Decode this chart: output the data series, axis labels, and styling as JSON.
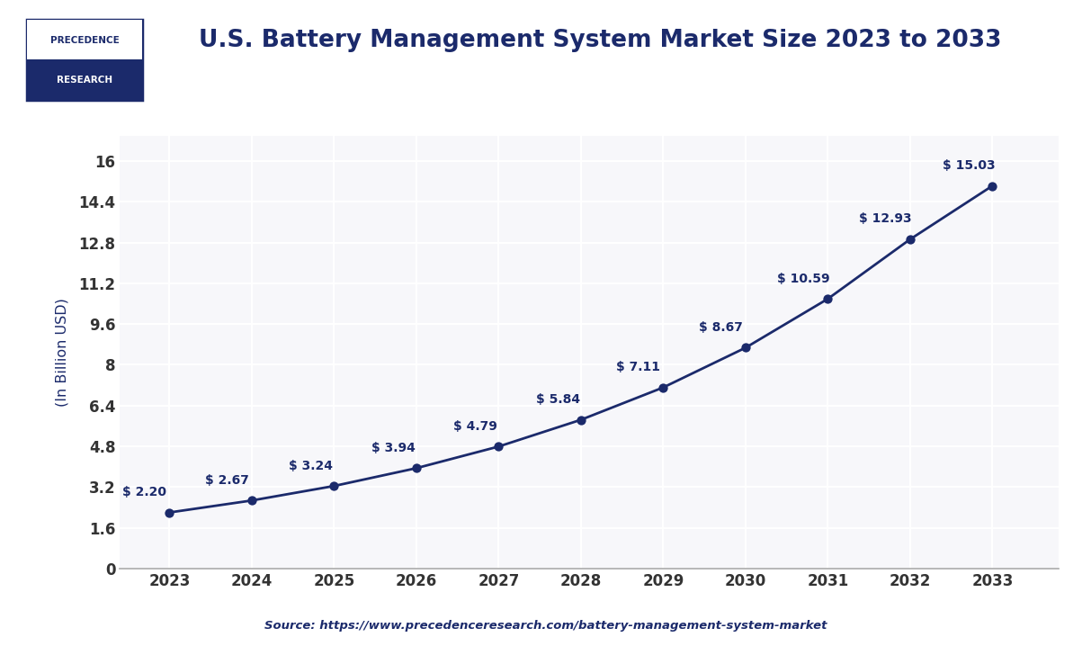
{
  "title": "U.S. Battery Management System Market Size 2023 to 2033",
  "ylabel": "(In Billion USD)",
  "source_text": "Source: https://www.precedenceresearch.com/battery-management-system-market",
  "years": [
    2023,
    2024,
    2025,
    2026,
    2027,
    2028,
    2029,
    2030,
    2031,
    2032,
    2033
  ],
  "values": [
    2.2,
    2.67,
    3.24,
    3.94,
    4.79,
    5.84,
    7.11,
    8.67,
    10.59,
    12.93,
    15.03
  ],
  "labels": [
    "$ 2.20",
    "$ 2.67",
    "$ 3.24",
    "$ 3.94",
    "$ 4.79",
    "$ 5.84",
    "$ 7.11",
    "$ 8.67",
    "$ 10.59",
    "$ 12.93",
    "$ 15.03"
  ],
  "line_color": "#1b2a6b",
  "marker_color": "#1b2a6b",
  "bg_color": "#ffffff",
  "plot_bg_color": "#f7f7fa",
  "grid_color": "#ffffff",
  "title_color": "#1b2a6b",
  "label_color": "#1b2a6b",
  "tick_color": "#333333",
  "yticks": [
    0,
    1.6,
    3.2,
    4.8,
    6.4,
    8.0,
    9.6,
    11.2,
    12.8,
    14.4,
    16.0
  ],
  "ytick_labels": [
    "0",
    "1.6",
    "3.2",
    "4.8",
    "6.4",
    "8",
    "9.6",
    "11.2",
    "12.8",
    "14.4",
    "16"
  ],
  "ylim": [
    0,
    17.0
  ],
  "xlim_left": 2022.4,
  "xlim_right": 2033.8,
  "source_color": "#1b2a6b",
  "logo_top_bg": "#ffffff",
  "logo_bottom_bg": "#1b2a6b",
  "logo_border": "#1b2a6b",
  "label_offsets_x": [
    -0.3,
    -0.3,
    -0.28,
    -0.28,
    -0.28,
    -0.28,
    -0.3,
    -0.3,
    -0.3,
    -0.3,
    -0.28
  ],
  "label_offsets_y": [
    0.55,
    0.55,
    0.55,
    0.55,
    0.55,
    0.55,
    0.55,
    0.55,
    0.55,
    0.55,
    0.55
  ]
}
